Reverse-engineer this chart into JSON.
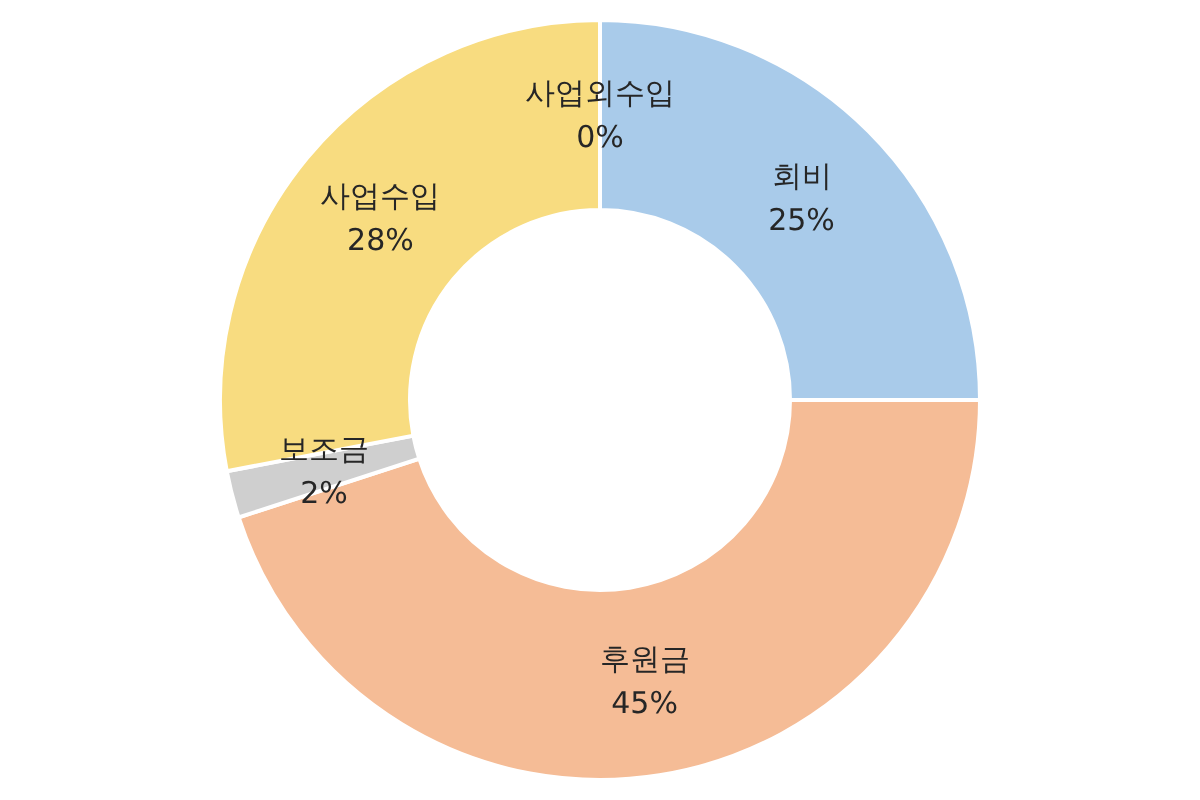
{
  "chart_data": {
    "type": "donut",
    "categories": [
      "회비",
      "후원금",
      "보조금",
      "사업수입",
      "사업외수입"
    ],
    "values": [
      25,
      45,
      2,
      28,
      0
    ],
    "value_labels": [
      "25%",
      "45%",
      "2%",
      "28%",
      "0%"
    ],
    "colors": [
      "#a9cbea",
      "#f5bc96",
      "#cfcfcf",
      "#f8dc80",
      "#d9d9d9"
    ]
  }
}
